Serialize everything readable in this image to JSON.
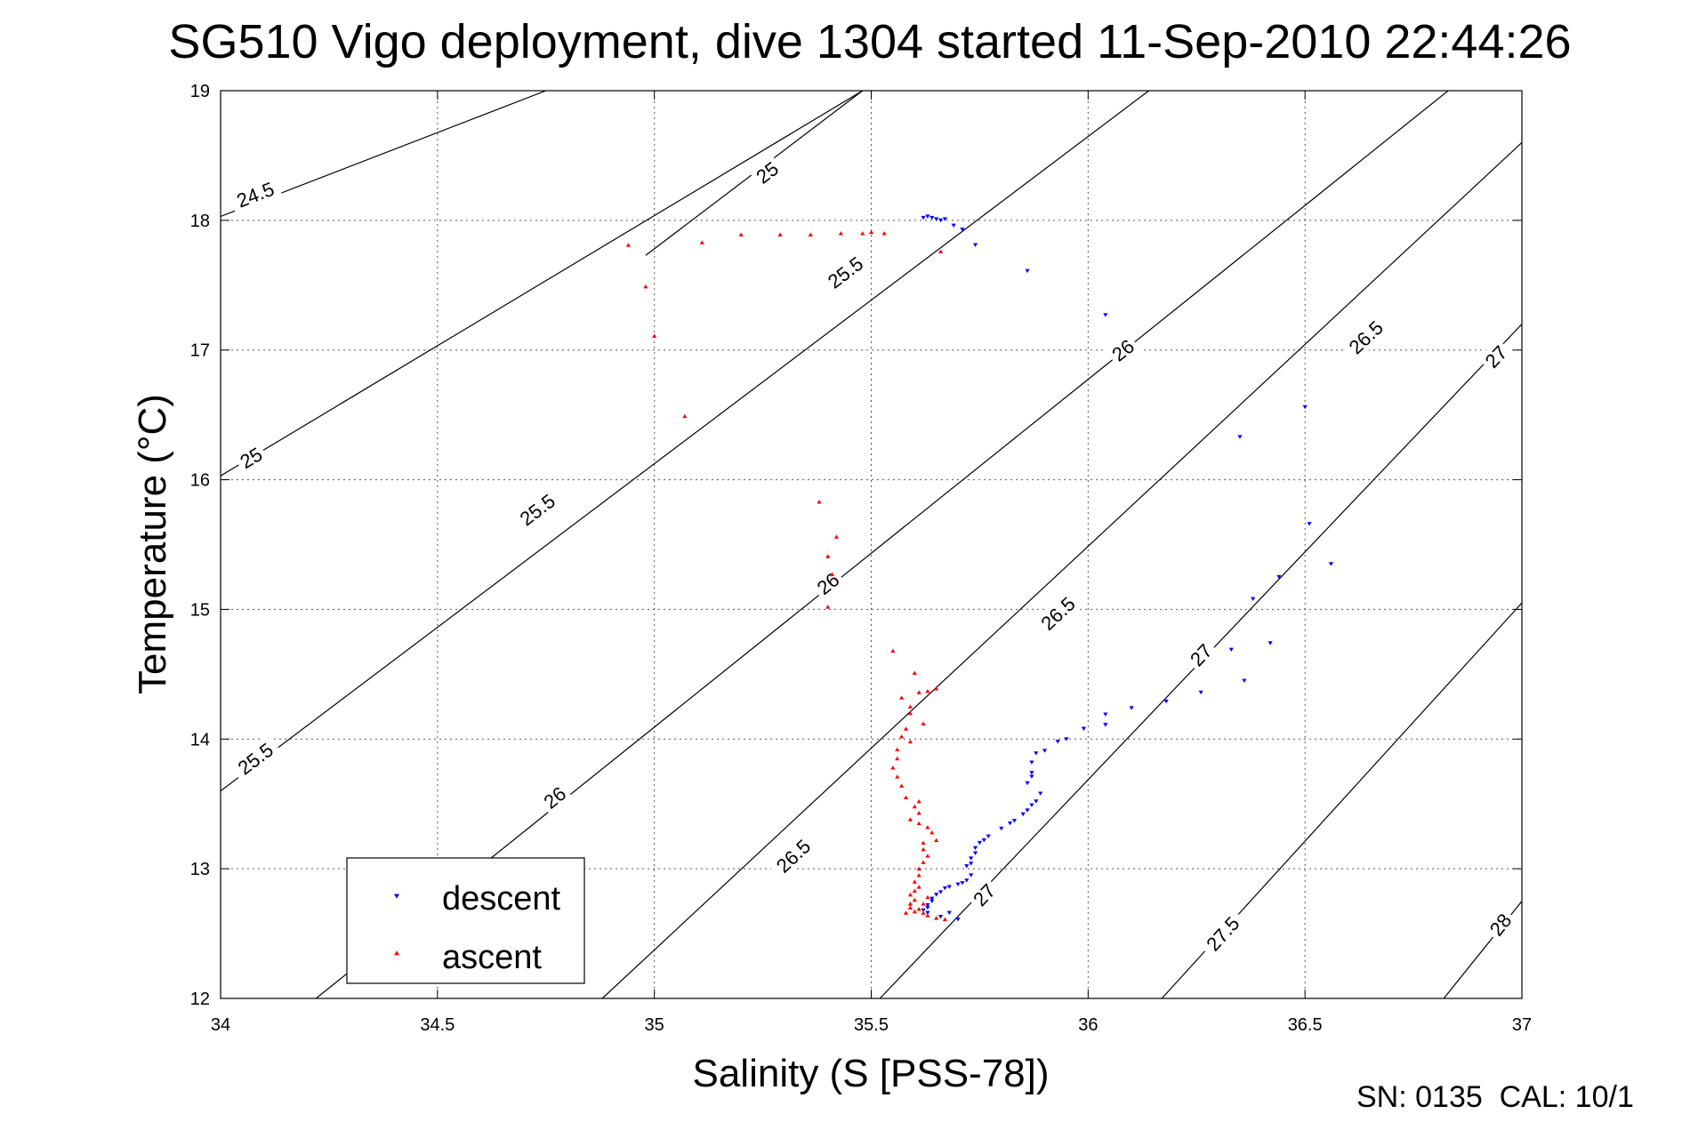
{
  "chart_data": {
    "type": "scatter",
    "title": "SG510 Vigo deployment, dive 1304 started 11-Sep-2010 22:44:26",
    "xlabel": "Salinity (S [PSS-78])",
    "ylabel": "Temperature (°C)",
    "xlim": [
      34,
      37
    ],
    "ylim": [
      12,
      19
    ],
    "xticks": [
      "34",
      "34.5",
      "35",
      "35.5",
      "36",
      "36.5",
      "37"
    ],
    "yticks": [
      "12",
      "13",
      "14",
      "15",
      "16",
      "17",
      "18",
      "19"
    ],
    "grid": true,
    "legend_position": "bottom-left",
    "footer": "SN: 0135  CAL: 10/1",
    "density_contours": [
      {
        "label": "24.5",
        "from": [
          34.0,
          18.03
        ],
        "to": [
          34.75,
          19.0
        ],
        "label_at": [
          34.08,
          18.2
        ]
      },
      {
        "label": "25",
        "from": [
          34.0,
          16.03
        ],
        "to": [
          35.48,
          19.0
        ],
        "label_at": [
          34.07,
          16.17
        ]
      },
      {
        "label": "25",
        "from": [
          34.98,
          17.73
        ],
        "to": [
          35.48,
          19.0
        ],
        "label_at": [
          35.26,
          18.37
        ]
      },
      {
        "label": "25.5",
        "from": [
          34.0,
          13.6
        ],
        "to": [
          36.14,
          19.0
        ],
        "label_at": [
          34.08,
          13.85
        ]
      },
      {
        "label": "25.5",
        "from": [
          34.0,
          13.6
        ],
        "to": [
          36.14,
          19.0
        ],
        "label_at": [
          34.73,
          15.77
        ]
      },
      {
        "label": "25.5",
        "from": [
          34.0,
          13.6
        ],
        "to": [
          36.14,
          19.0
        ],
        "label_at": [
          35.44,
          17.6
        ]
      },
      {
        "label": "26",
        "from": [
          34.22,
          12.0
        ],
        "to": [
          36.83,
          19.0
        ],
        "label_at": [
          34.77,
          13.55
        ]
      },
      {
        "label": "26",
        "from": [
          34.22,
          12.0
        ],
        "to": [
          36.83,
          19.0
        ],
        "label_at": [
          35.4,
          15.2
        ]
      },
      {
        "label": "26",
        "from": [
          34.22,
          12.0
        ],
        "to": [
          36.83,
          19.0
        ],
        "label_at": [
          36.08,
          17.0
        ]
      },
      {
        "label": "26.5",
        "from": [
          34.88,
          12.0
        ],
        "to": [
          37.0,
          18.6
        ],
        "label_at": [
          35.32,
          13.1
        ]
      },
      {
        "label": "26.5",
        "from": [
          34.88,
          12.0
        ],
        "to": [
          37.0,
          18.6
        ],
        "label_at": [
          35.93,
          14.97
        ]
      },
      {
        "label": "26.5",
        "from": [
          34.88,
          12.0
        ],
        "to": [
          37.0,
          18.6
        ],
        "label_at": [
          36.64,
          17.1
        ]
      },
      {
        "label": "27",
        "from": [
          35.52,
          12.0
        ],
        "to": [
          37.0,
          17.2
        ],
        "label_at": [
          35.76,
          12.8
        ]
      },
      {
        "label": "27",
        "from": [
          35.52,
          12.0
        ],
        "to": [
          37.0,
          17.2
        ],
        "label_at": [
          36.26,
          14.65
        ]
      },
      {
        "label": "27",
        "from": [
          35.52,
          12.0
        ],
        "to": [
          37.0,
          17.2
        ],
        "label_at": [
          36.94,
          16.95
        ]
      },
      {
        "label": "27.5",
        "from": [
          36.17,
          12.0
        ],
        "to": [
          37.0,
          15.05
        ],
        "label_at": [
          36.31,
          12.5
        ]
      },
      {
        "label": "28",
        "from": [
          36.82,
          12.0
        ],
        "to": [
          37.0,
          12.75
        ],
        "label_at": [
          36.95,
          12.57
        ]
      }
    ],
    "series": [
      {
        "name": "descent",
        "color": "#0000ff",
        "marker": "triangle-down",
        "points": [
          [
            35.62,
            18.02
          ],
          [
            35.63,
            18.03
          ],
          [
            35.64,
            18.02
          ],
          [
            35.65,
            18.01
          ],
          [
            35.66,
            18.0
          ],
          [
            35.67,
            18.01
          ],
          [
            35.69,
            17.96
          ],
          [
            35.71,
            17.93
          ],
          [
            35.74,
            17.81
          ],
          [
            35.86,
            17.61
          ],
          [
            36.04,
            17.27
          ],
          [
            36.5,
            16.56
          ],
          [
            36.35,
            16.33
          ],
          [
            36.51,
            15.66
          ],
          [
            36.56,
            15.35
          ],
          [
            36.44,
            15.25
          ],
          [
            36.38,
            15.08
          ],
          [
            36.33,
            14.69
          ],
          [
            36.42,
            14.74
          ],
          [
            36.36,
            14.45
          ],
          [
            36.26,
            14.36
          ],
          [
            36.18,
            14.29
          ],
          [
            36.1,
            14.24
          ],
          [
            36.04,
            14.19
          ],
          [
            36.04,
            14.11
          ],
          [
            35.99,
            14.08
          ],
          [
            35.95,
            14.0
          ],
          [
            35.93,
            13.98
          ],
          [
            35.9,
            13.91
          ],
          [
            35.88,
            13.89
          ],
          [
            35.87,
            13.82
          ],
          [
            35.87,
            13.74
          ],
          [
            35.87,
            13.71
          ],
          [
            35.86,
            13.66
          ],
          [
            35.89,
            13.58
          ],
          [
            35.88,
            13.52
          ],
          [
            35.87,
            13.49
          ],
          [
            35.86,
            13.45
          ],
          [
            35.85,
            13.42
          ],
          [
            35.83,
            13.37
          ],
          [
            35.82,
            13.35
          ],
          [
            35.8,
            13.31
          ],
          [
            35.77,
            13.25
          ],
          [
            35.76,
            13.22
          ],
          [
            35.75,
            13.2
          ],
          [
            35.74,
            13.16
          ],
          [
            35.74,
            13.12
          ],
          [
            35.73,
            13.08
          ],
          [
            35.73,
            13.04
          ],
          [
            35.72,
            13.02
          ],
          [
            35.73,
            12.95
          ],
          [
            35.72,
            12.91
          ],
          [
            35.71,
            12.89
          ],
          [
            35.7,
            12.88
          ],
          [
            35.68,
            12.86
          ],
          [
            35.67,
            12.85
          ],
          [
            35.66,
            12.82
          ],
          [
            35.65,
            12.8
          ],
          [
            35.64,
            12.77
          ],
          [
            35.64,
            12.75
          ],
          [
            35.63,
            12.72
          ],
          [
            35.63,
            12.7
          ],
          [
            35.62,
            12.68
          ],
          [
            35.63,
            12.66
          ],
          [
            35.66,
            12.63
          ],
          [
            35.7,
            12.61
          ],
          [
            35.68,
            12.66
          ]
        ]
      },
      {
        "name": "ascent",
        "color": "#ff0000",
        "marker": "triangle-up",
        "points": [
          [
            34.94,
            17.81
          ],
          [
            35.11,
            17.83
          ],
          [
            35.2,
            17.89
          ],
          [
            35.29,
            17.89
          ],
          [
            35.36,
            17.89
          ],
          [
            35.43,
            17.9
          ],
          [
            35.48,
            17.9
          ],
          [
            35.5,
            17.91
          ],
          [
            35.53,
            17.9
          ],
          [
            35.66,
            17.76
          ],
          [
            34.98,
            17.49
          ],
          [
            35.0,
            17.11
          ],
          [
            35.07,
            16.49
          ],
          [
            35.38,
            15.83
          ],
          [
            35.42,
            15.56
          ],
          [
            35.4,
            15.41
          ],
          [
            35.41,
            15.27
          ],
          [
            35.4,
            15.02
          ],
          [
            35.55,
            14.68
          ],
          [
            35.6,
            14.51
          ],
          [
            35.65,
            14.39
          ],
          [
            35.63,
            14.37
          ],
          [
            35.61,
            14.36
          ],
          [
            35.57,
            14.32
          ],
          [
            35.59,
            14.25
          ],
          [
            35.59,
            14.2
          ],
          [
            35.62,
            14.12
          ],
          [
            35.58,
            14.08
          ],
          [
            35.57,
            14.02
          ],
          [
            35.59,
            13.98
          ],
          [
            35.56,
            13.92
          ],
          [
            35.56,
            13.85
          ],
          [
            35.55,
            13.78
          ],
          [
            35.56,
            13.71
          ],
          [
            35.57,
            13.64
          ],
          [
            35.58,
            13.55
          ],
          [
            35.61,
            13.52
          ],
          [
            35.6,
            13.48
          ],
          [
            35.61,
            13.43
          ],
          [
            35.59,
            13.38
          ],
          [
            35.61,
            13.35
          ],
          [
            35.63,
            13.32
          ],
          [
            35.64,
            13.28
          ],
          [
            35.65,
            13.22
          ],
          [
            35.62,
            13.2
          ],
          [
            35.62,
            13.15
          ],
          [
            35.63,
            13.1
          ],
          [
            35.62,
            13.05
          ],
          [
            35.61,
            13.0
          ],
          [
            35.61,
            12.95
          ],
          [
            35.6,
            12.9
          ],
          [
            35.61,
            12.86
          ],
          [
            35.6,
            12.83
          ],
          [
            35.59,
            12.8
          ],
          [
            35.6,
            12.76
          ],
          [
            35.59,
            12.73
          ],
          [
            35.59,
            12.7
          ],
          [
            35.6,
            12.67
          ],
          [
            35.62,
            12.66
          ],
          [
            35.63,
            12.64
          ],
          [
            35.65,
            12.62
          ],
          [
            35.67,
            12.61
          ],
          [
            35.58,
            12.66
          ],
          [
            35.61,
            12.69
          ],
          [
            35.62,
            12.73
          ],
          [
            35.63,
            12.78
          ]
        ]
      }
    ]
  }
}
